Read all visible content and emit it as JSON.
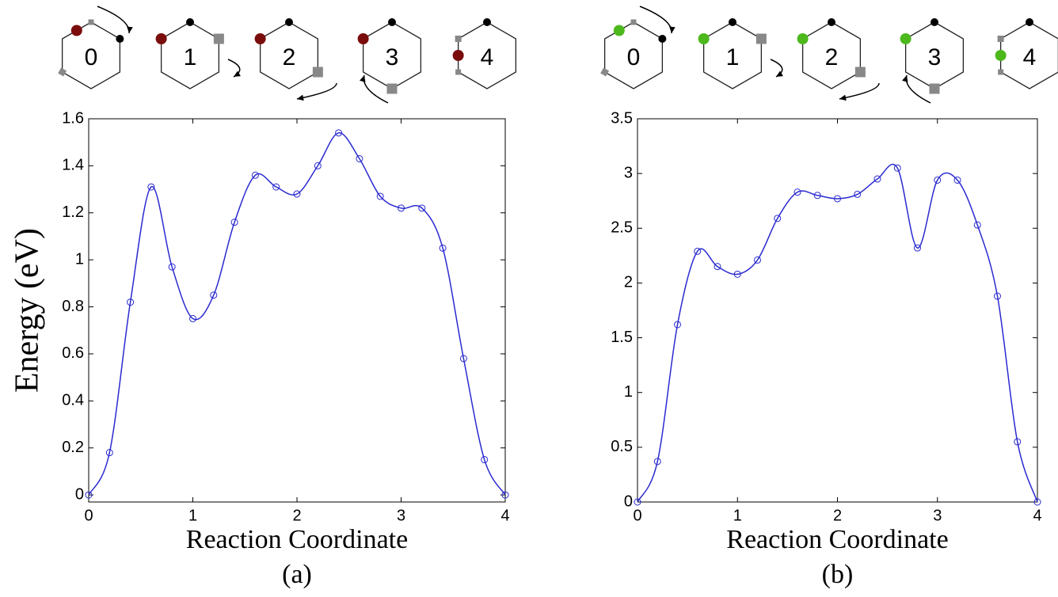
{
  "chart_data": [
    {
      "type": "line",
      "caption": "(a)",
      "x_label": "Reaction Coordinate",
      "y_label": "Energy (eV)",
      "panel_labels": [
        "0",
        "1",
        "2",
        "3",
        "4"
      ],
      "atom_color": "#7a0c0c",
      "x": [
        0,
        0.2,
        0.4,
        0.6,
        0.8,
        1,
        1.2,
        1.4,
        1.6,
        1.8,
        2,
        2.2,
        2.4,
        2.6,
        2.8,
        3,
        3.2,
        3.4,
        3.6,
        3.8,
        4
      ],
      "series": [
        {
          "color": "#2a2ad0",
          "values": [
            0,
            0.18,
            0.82,
            1.31,
            0.97,
            0.75,
            0.85,
            1.16,
            1.36,
            1.31,
            1.28,
            1.4,
            1.54,
            1.43,
            1.27,
            1.22,
            1.22,
            1.05,
            0.58,
            0.15,
            0
          ]
        }
      ],
      "xlim": [
        0,
        4
      ],
      "xticks": [
        0,
        1,
        2,
        3,
        4
      ],
      "ylim": [
        -0.03,
        1.6
      ],
      "yticks": [
        0,
        0.2,
        0.4,
        0.6,
        0.8,
        1,
        1.2,
        1.4,
        1.6
      ]
    },
    {
      "type": "line",
      "caption": "(b)",
      "x_label": "Reaction Coordinate",
      "panel_labels": [
        "0",
        "1",
        "2",
        "3",
        "4"
      ],
      "atom_color": "#4cb81c",
      "x": [
        0,
        0.2,
        0.4,
        0.6,
        0.8,
        1,
        1.2,
        1.4,
        1.6,
        1.8,
        2,
        2.2,
        2.4,
        2.6,
        2.8,
        3,
        3.2,
        3.4,
        3.6,
        3.8,
        4
      ],
      "series": [
        {
          "color": "#2a2ad0",
          "values": [
            0,
            0.37,
            1.62,
            2.29,
            2.15,
            2.08,
            2.21,
            2.59,
            2.83,
            2.8,
            2.77,
            2.81,
            2.95,
            3.05,
            2.32,
            2.94,
            2.94,
            2.53,
            1.88,
            0.55,
            0
          ]
        }
      ],
      "xlim": [
        0,
        4
      ],
      "xticks": [
        0,
        1,
        2,
        3,
        4
      ],
      "ylim": [
        0,
        3.5
      ],
      "yticks": [
        0,
        0.5,
        1,
        1.5,
        2,
        2.5,
        3,
        3.5
      ]
    }
  ]
}
